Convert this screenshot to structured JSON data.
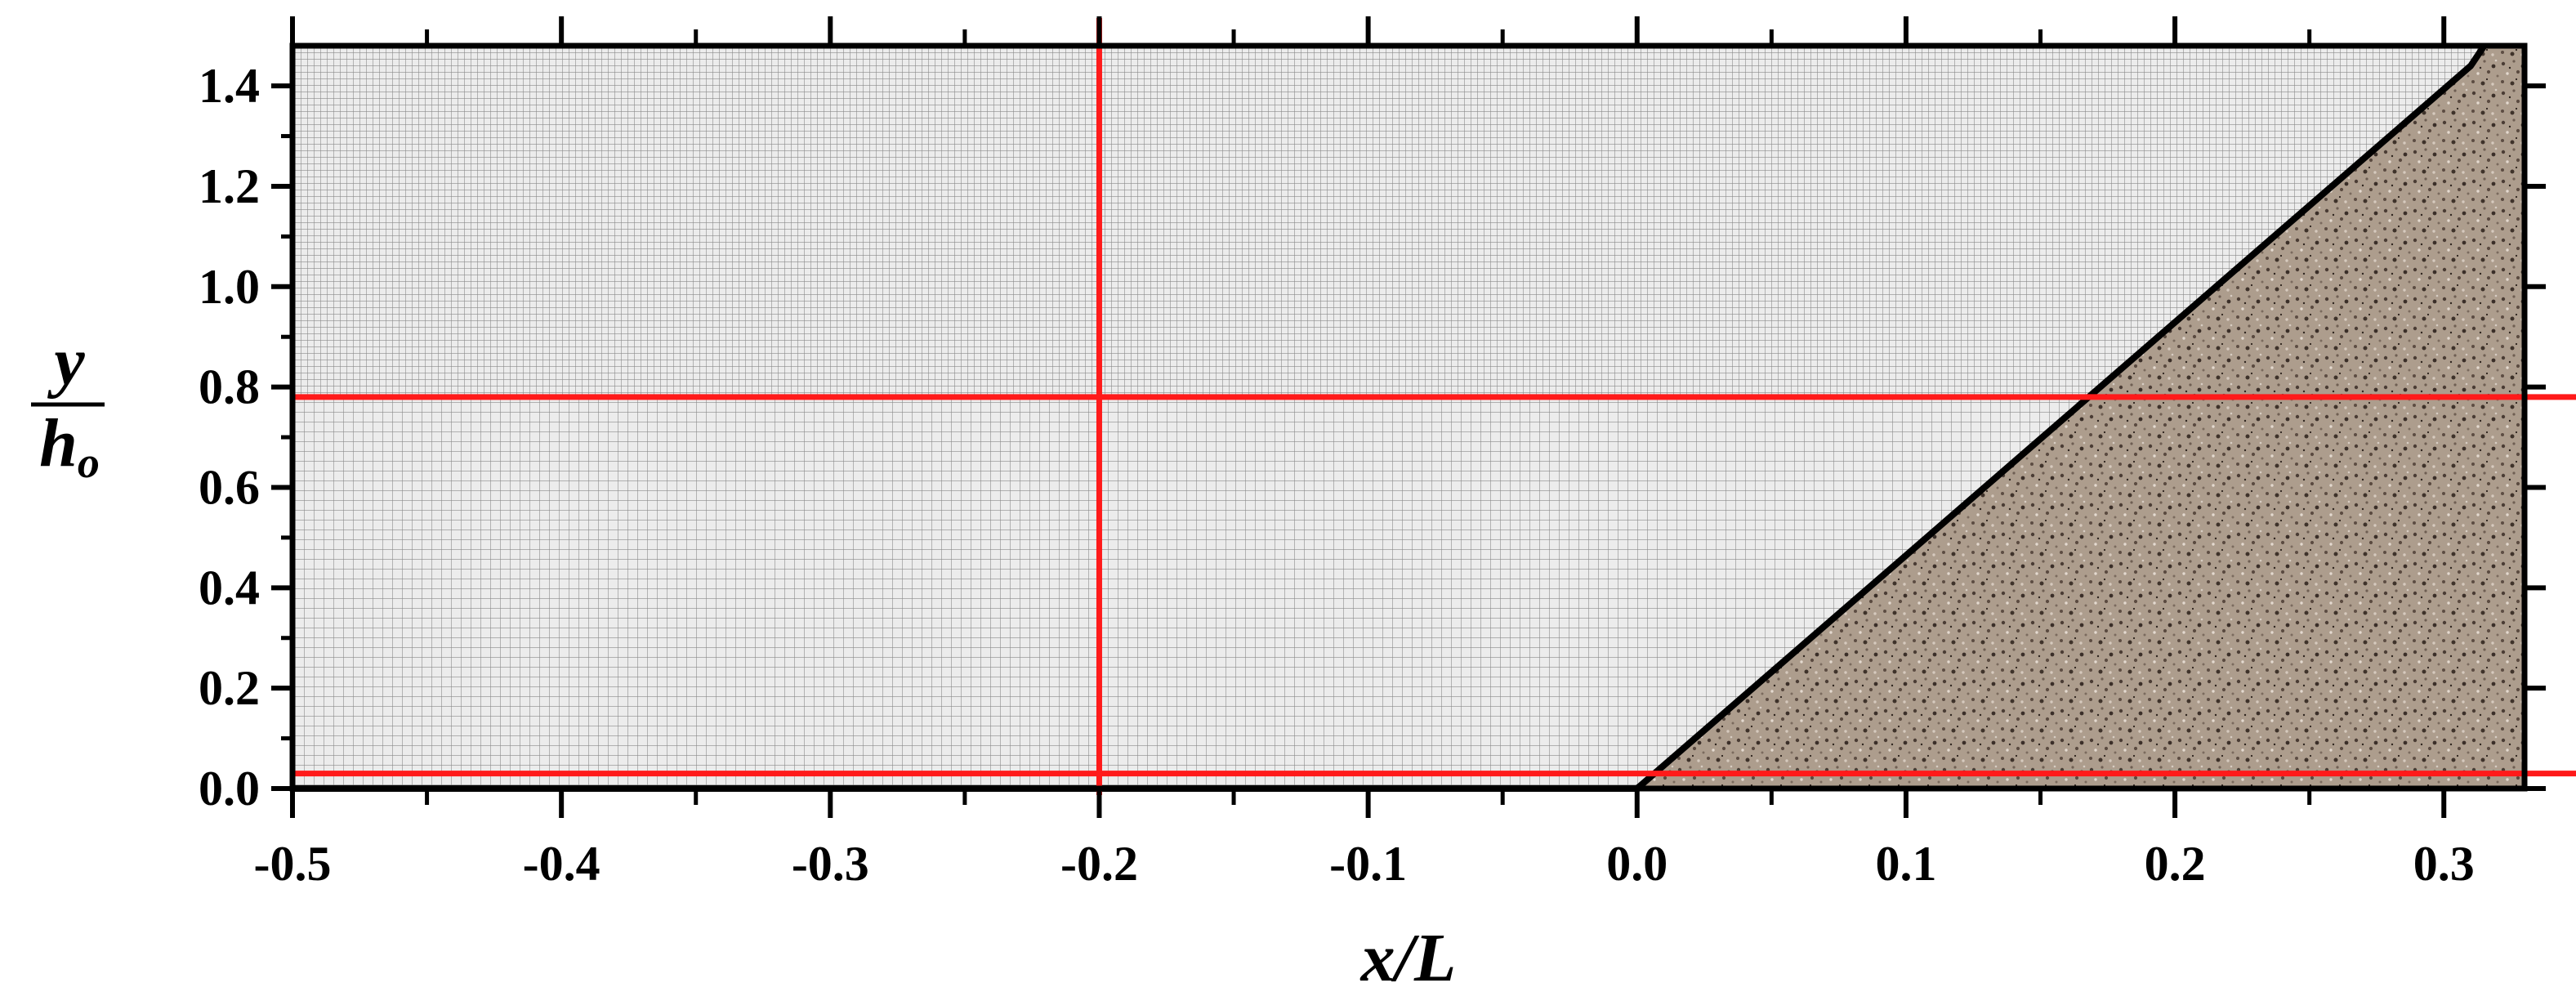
{
  "chart_data": {
    "type": "line",
    "title": "",
    "xlabel": "x/L",
    "ylabel": {
      "numerator": "y",
      "denominator": "h",
      "subscript": "o"
    },
    "xlim": [
      -0.5,
      0.33
    ],
    "ylim": [
      0.0,
      1.48
    ],
    "x_ticks": [
      -0.5,
      -0.4,
      -0.3,
      -0.2,
      -0.1,
      0.0,
      0.1,
      0.2,
      0.3
    ],
    "x_tick_labels": [
      "-0.5",
      "-0.4",
      "-0.3",
      "-0.2",
      "-0.1",
      "0.0",
      "0.1",
      "0.2",
      "0.3"
    ],
    "y_ticks": [
      0.0,
      0.2,
      0.4,
      0.6,
      0.8,
      1.0,
      1.2,
      1.4
    ],
    "y_tick_labels": [
      "0.0",
      "0.2",
      "0.4",
      "0.6",
      "0.8",
      "1.0",
      "1.2",
      "1.4"
    ],
    "mesh": {
      "description_visible": "computational grid",
      "fine_region_y": [
        0.78,
        1.48
      ],
      "coarse_region_y": [
        0.0,
        0.78
      ],
      "color": "#8a8a8a",
      "background": "#ececec"
    },
    "slope": {
      "x": [
        0.0,
        0.31,
        0.315
      ],
      "y": [
        0.0,
        1.44,
        1.48
      ],
      "color": "#000000",
      "fill": "#a89888"
    },
    "bottom_boundary": {
      "x": [
        -0.5,
        0.0
      ],
      "y": [
        0.0,
        0.0
      ]
    },
    "red_lines": {
      "color": "#ff1a1a",
      "vertical_x": [
        -0.2
      ],
      "horizontal_y": [
        0.03,
        0.78
      ]
    },
    "grid": false
  }
}
